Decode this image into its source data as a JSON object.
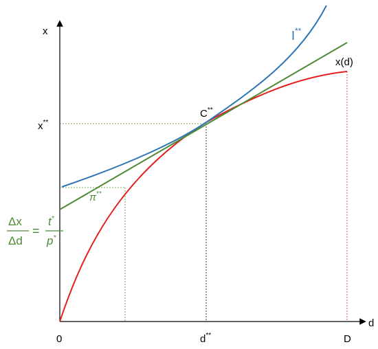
{
  "axes": {
    "y_label": "x",
    "x_label": "d"
  },
  "x_ticks": [
    {
      "base": "0"
    },
    {
      "base": "d",
      "sup": "**"
    },
    {
      "base": "D"
    }
  ],
  "y_ticks": [
    {
      "base": "x",
      "sup": "**"
    }
  ],
  "point_label": {
    "base": "C",
    "sup": "**"
  },
  "curves": {
    "isoprofit": {
      "base": "I",
      "sup": "**"
    },
    "production": "x(d)",
    "price_line": {
      "base": "π",
      "sup": "**"
    }
  },
  "equation": {
    "lhs_numerator": "Δx",
    "lhs_denominator": "Δd",
    "equals": "=",
    "rhs_numerator": "t",
    "rhs_numerator_sup": "*",
    "rhs_denominator": "p",
    "rhs_denominator_sup": "*"
  }
}
